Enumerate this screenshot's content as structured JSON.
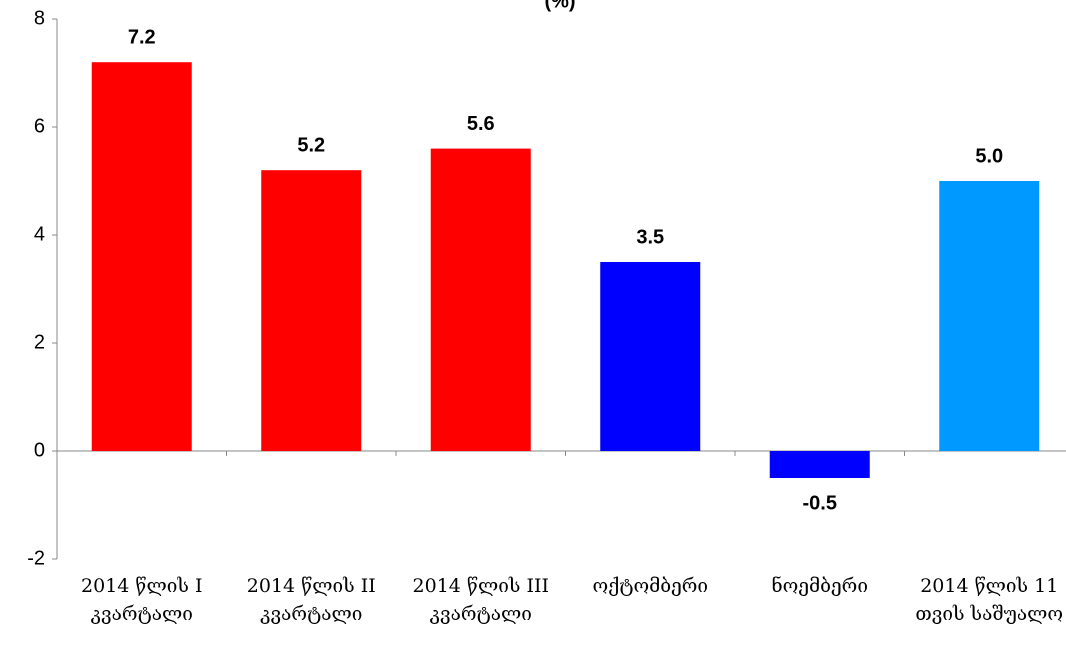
{
  "chart_data": {
    "type": "bar",
    "title": "(%)",
    "categories": [
      "2014 წლის I კვარტალი",
      "2014 წლის II კვარტალი",
      "2014 წლის III კვარტალი",
      "ოქტომბერი",
      "ნოემბერი",
      "2014 წლის 11 თვის საშუალო"
    ],
    "values": [
      7.2,
      5.2,
      5.6,
      3.5,
      -0.5,
      5.0
    ],
    "value_labels": [
      "7.2",
      "5.2",
      "5.6",
      "3.5",
      "-0.5",
      "5.0"
    ],
    "colors": [
      "#ff0000",
      "#ff0000",
      "#ff0000",
      "#0000ff",
      "#0000ff",
      "#0099ff"
    ],
    "ylim": [
      -2,
      8
    ],
    "yticks": [
      -2,
      0,
      2,
      4,
      6,
      8
    ]
  }
}
